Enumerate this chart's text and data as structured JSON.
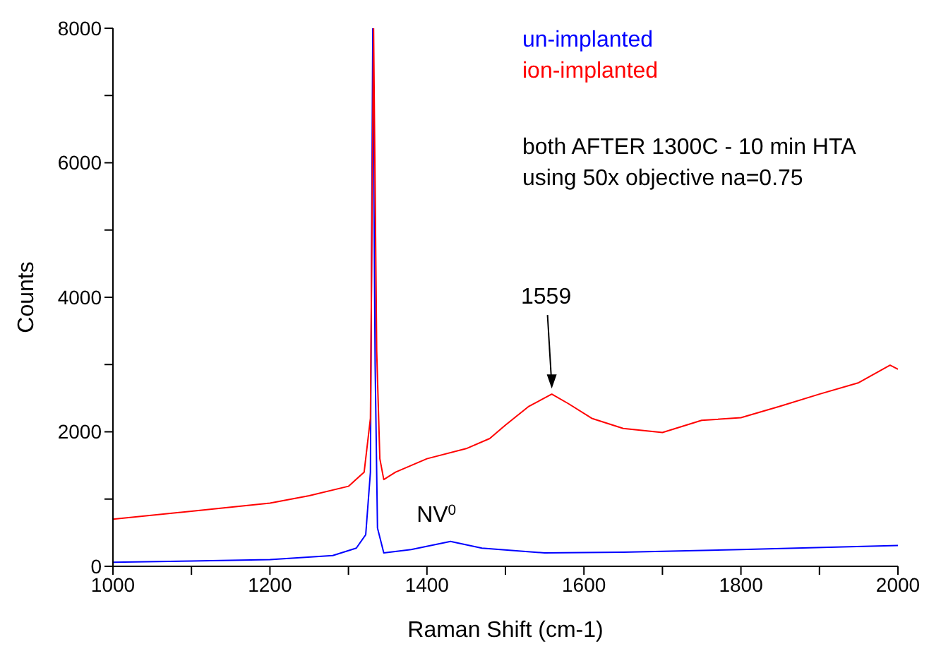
{
  "chart_data": {
    "type": "line",
    "xlabel": "Raman Shift (cm-1)",
    "ylabel": "Counts",
    "xlim": [
      1000,
      2000
    ],
    "ylim": [
      0,
      8000
    ],
    "xticks": [
      1000,
      {
        "value": 1100,
        "label": null
      },
      1200,
      {
        "value": 1300,
        "label": null
      },
      1400,
      {
        "value": 1500,
        "label": null
      },
      1600,
      {
        "value": 1700,
        "label": null
      },
      1800,
      {
        "value": 1900,
        "label": null
      },
      2000
    ],
    "yticks": [
      0,
      {
        "value": 1000,
        "label": null
      },
      2000,
      {
        "value": 3000,
        "label": null
      },
      4000,
      {
        "value": 5000,
        "label": null
      },
      6000,
      {
        "value": 7000,
        "label": null
      },
      8000
    ],
    "grid": false,
    "legend": "top right",
    "marker": "none",
    "line_style": "solid",
    "series": [
      {
        "name": "un-implanted",
        "color": "#0000ff",
        "x": [
          1000,
          1100,
          1200,
          1280,
          1310,
          1322,
          1328,
          1331,
          1334,
          1337,
          1345,
          1380,
          1430,
          1470,
          1550,
          1650,
          1800,
          2000
        ],
        "values": [
          60,
          80,
          100,
          160,
          270,
          470,
          1400,
          8000,
          3000,
          570,
          200,
          250,
          370,
          270,
          200,
          210,
          250,
          310
        ]
      },
      {
        "name": "ion-implanted",
        "color": "#ff0000",
        "x": [
          1000,
          1100,
          1200,
          1250,
          1300,
          1320,
          1328,
          1332,
          1336,
          1340,
          1345,
          1360,
          1400,
          1450,
          1480,
          1500,
          1530,
          1559,
          1580,
          1610,
          1650,
          1700,
          1750,
          1800,
          1850,
          1900,
          1950,
          1990,
          2000
        ],
        "values": [
          700,
          820,
          940,
          1050,
          1190,
          1400,
          2200,
          8000,
          3200,
          1600,
          1290,
          1400,
          1600,
          1750,
          1900,
          2100,
          2380,
          2560,
          2420,
          2200,
          2050,
          1990,
          2170,
          2210,
          2380,
          2560,
          2730,
          2990,
          2930
        ]
      }
    ],
    "annotations": [
      {
        "text": "1559",
        "x": 1559,
        "y": 2560
      },
      {
        "text": "NV$^{0}$",
        "x": 1430,
        "y": 370
      },
      "both AFTER 1300C - 10 min HTA",
      "using 50x objective na=0.75"
    ]
  }
}
